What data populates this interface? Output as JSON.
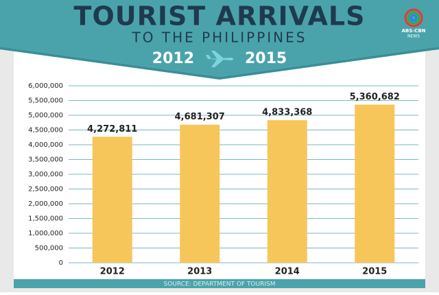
{
  "chart_data": {
    "type": "bar",
    "title": "TOURIST ARRIVALS",
    "subtitle": "TO THE PHILIPPINES",
    "period": [
      "2012",
      "2015"
    ],
    "logo": [
      "ABS-CBN",
      "NEWS"
    ],
    "source": "SOURCE: DEPARTMENT OF TOURISM",
    "categories": [
      "2012",
      "2013",
      "2014",
      "2015"
    ],
    "values": [
      4272811,
      4681307,
      4833368,
      5360682
    ],
    "value_labels": [
      "4,272,811",
      "4,681,307",
      "4,833,368",
      "5,360,682"
    ],
    "color": "#f7c65a",
    "ylim": [
      0,
      6000000
    ],
    "yticks": [
      0,
      {
        "value": 500000,
        "label": "500,000"
      },
      {
        "value": 1000000,
        "label": "1,000,000"
      },
      {
        "value": 1500000,
        "label": "1,500,000"
      },
      {
        "value": 2000000,
        "label": "2,000,000"
      },
      {
        "value": 2500000,
        "label": "2,500,000"
      },
      {
        "value": 3000000,
        "label": "3,000,000"
      },
      {
        "value": 3500000,
        "label": "3,500,000"
      },
      {
        "value": 4000000,
        "label": "4,000,000"
      },
      {
        "value": 4500000,
        "label": "4,500,000"
      },
      {
        "value": 5000000,
        "label": "5,000,000"
      },
      {
        "value": 5500000,
        "label": "5,500,000"
      },
      {
        "value": 6000000,
        "label": "6,000,000"
      }
    ],
    "grid": true
  }
}
